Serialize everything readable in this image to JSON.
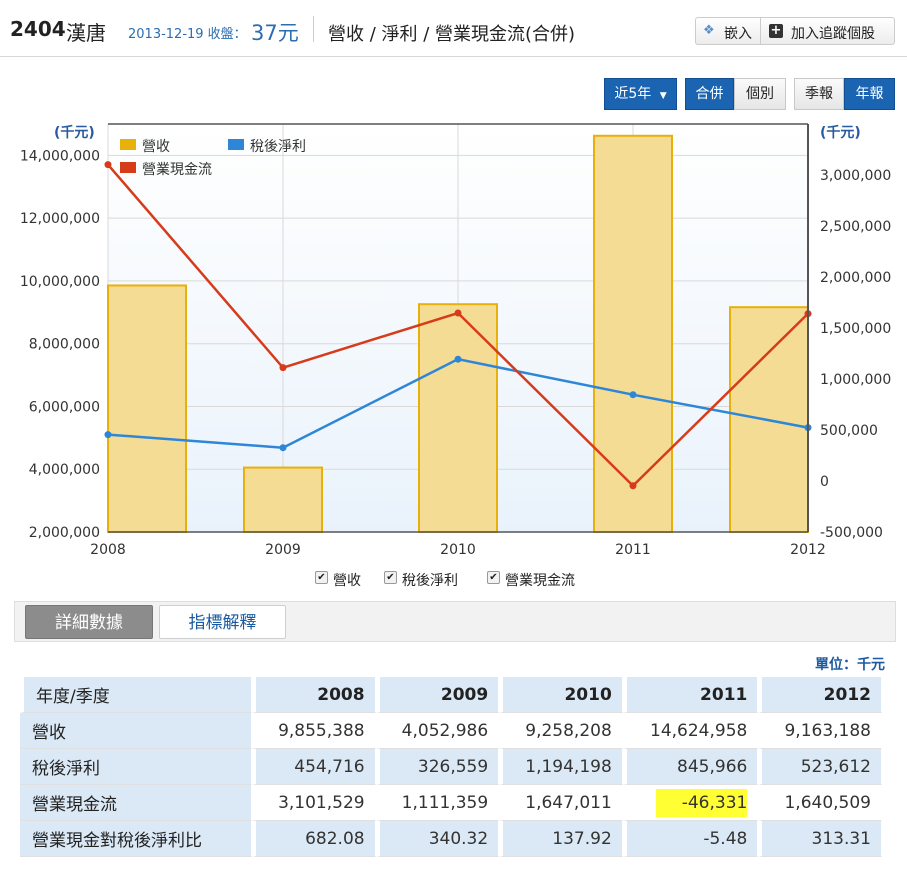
{
  "header": {
    "stock_code": "2404",
    "stock_name": "漢唐",
    "date_label": "2013-12-19 收盤：",
    "price": "37元",
    "page_title": "營收 / 淨利 / 營業現金流(合併)",
    "embed_label": "嵌入",
    "track_label": "加入追蹤個股"
  },
  "controls": {
    "period_label": "近5年",
    "consolidated_label": "合併",
    "individual_label": "個別",
    "quarterly_label": "季報",
    "annual_label": "年報"
  },
  "chart_data": {
    "type": "bar",
    "categories": [
      "2008",
      "2009",
      "2010",
      "2011",
      "2012"
    ],
    "left_axis": {
      "label": "(千元)",
      "min": 2000000,
      "max": 15000000,
      "ticks": [
        2000000,
        4000000,
        6000000,
        8000000,
        10000000,
        12000000,
        14000000
      ],
      "tick_labels": [
        "2,000,000",
        "4,000,000",
        "6,000,000",
        "8,000,000",
        "10,000,000",
        "12,000,000",
        "14,000,000"
      ]
    },
    "right_axis": {
      "label": "(千元)",
      "min": -500000,
      "max": 3500000,
      "ticks": [
        -500000,
        0,
        500000,
        1000000,
        1500000,
        2000000,
        2500000,
        3000000
      ],
      "tick_labels": [
        "-500,000",
        "0",
        "500,000",
        "1,000,000",
        "1,500,000",
        "2,000,000",
        "2,500,000",
        "3,000,000"
      ]
    },
    "series": [
      {
        "name": "營收",
        "kind": "bar",
        "axis": "left",
        "color": "#e8b00a",
        "values": [
          9855388,
          4052986,
          9258208,
          14624958,
          9163188
        ]
      },
      {
        "name": "稅後淨利",
        "kind": "line",
        "axis": "right",
        "color": "#2e86d6",
        "values": [
          454716,
          326559,
          1194198,
          845966,
          523612
        ]
      },
      {
        "name": "營業現金流",
        "kind": "line",
        "axis": "right",
        "color": "#d63b1a",
        "values": [
          3101529,
          1111359,
          1647011,
          -46331,
          1640509
        ]
      }
    ],
    "grid": true,
    "legend_position": "top-left"
  },
  "tabs": {
    "detail_label": "詳細數據",
    "explain_label": "指標解釋"
  },
  "table": {
    "unit_note": "單位：千元",
    "header_label": "年度/季度",
    "years": [
      "2008",
      "2009",
      "2010",
      "2011",
      "2012"
    ],
    "rows": [
      {
        "label": "營收",
        "values": [
          "9,855,388",
          "4,052,986",
          "9,258,208",
          "14,624,958",
          "9,163,188"
        ]
      },
      {
        "label": "稅後淨利",
        "values": [
          "454,716",
          "326,559",
          "1,194,198",
          "845,966",
          "523,612"
        ]
      },
      {
        "label": "營業現金流",
        "values": [
          "3,101,529",
          "1,111,359",
          "1,647,011",
          "-46,331",
          "1,640,509"
        ]
      },
      {
        "label": "營業現金對稅後淨利比",
        "values": [
          "682.08",
          "340.32",
          "137.92",
          "-5.48",
          "313.31"
        ]
      }
    ],
    "highlight_color": "#ffff33"
  }
}
